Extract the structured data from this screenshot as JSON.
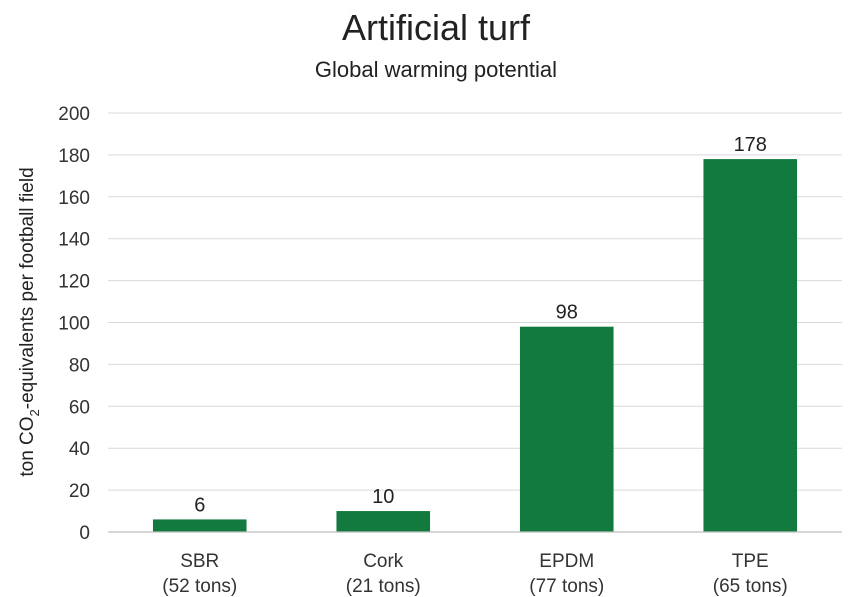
{
  "chart_data": {
    "type": "bar",
    "title": "Artificial turf",
    "subtitle": "Global warming potential",
    "ylabel": {
      "pre": "ton CO",
      "sub": "2",
      "post": "-equivalents per football field"
    },
    "ylim": [
      0,
      200
    ],
    "yticks": [
      0,
      20,
      40,
      60,
      80,
      100,
      120,
      140,
      160,
      180,
      200
    ],
    "grid": true,
    "color": "#127a3e",
    "categories": [
      {
        "name": "SBR",
        "detail": "(52 tons)"
      },
      {
        "name": "Cork",
        "detail": "(21 tons)"
      },
      {
        "name": "EPDM",
        "detail": "(77 tons)"
      },
      {
        "name": "TPE",
        "detail": "(65 tons)"
      }
    ],
    "values": [
      6,
      10,
      98,
      178
    ]
  }
}
